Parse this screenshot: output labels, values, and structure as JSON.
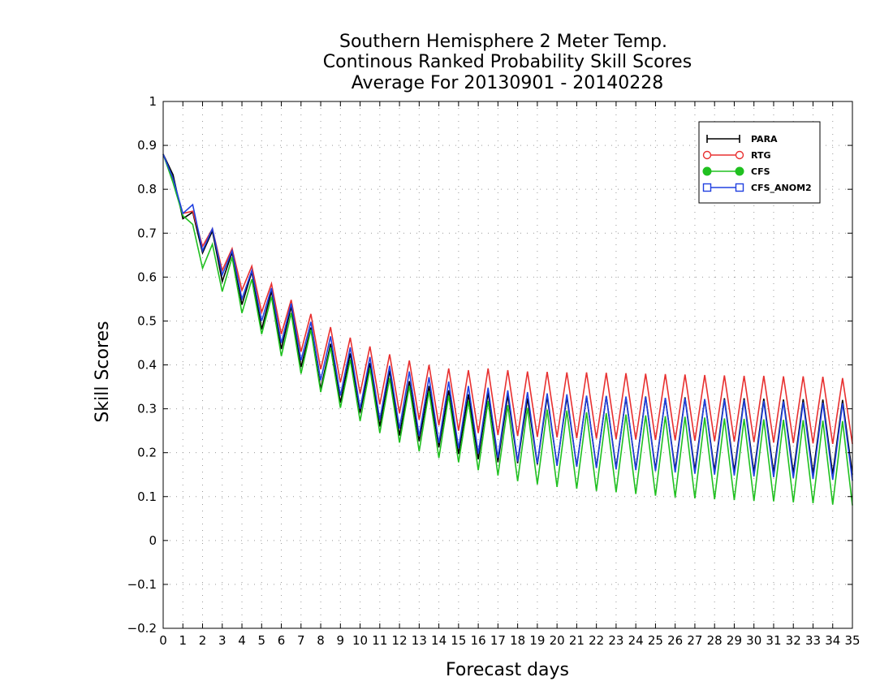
{
  "chart_data": {
    "type": "line",
    "title": [
      "Southern Hemisphere 2 Meter Temp.",
      "Continous Ranked Probability Skill Scores",
      "Average For 20130901 - 20140228"
    ],
    "xlabel": "Forecast days",
    "ylabel": "Skill Scores",
    "xlim": [
      0,
      35
    ],
    "ylim": [
      -0.2,
      1
    ],
    "xticks": [
      0,
      1,
      2,
      3,
      4,
      5,
      6,
      7,
      8,
      9,
      10,
      11,
      12,
      13,
      14,
      15,
      16,
      17,
      18,
      19,
      20,
      21,
      22,
      23,
      24,
      25,
      26,
      27,
      28,
      29,
      30,
      31,
      32,
      33,
      34,
      35
    ],
    "yticks": [
      -0.2,
      -0.1,
      0,
      0.1,
      0.2,
      0.3,
      0.4,
      0.5,
      0.6,
      0.7,
      0.8,
      0.9,
      1
    ],
    "ytick_labels": [
      "−0.2",
      "−0.1",
      "0",
      "0.1",
      "0.2",
      "0.3",
      "0.4",
      "0.5",
      "0.6",
      "0.7",
      "0.8",
      "0.9",
      "1"
    ],
    "grid": true,
    "legend_position": "top-right",
    "x_step_days": 0.5,
    "series": [
      {
        "name": "PARA",
        "color": "#000000",
        "marker": "plus",
        "values": [
          0.88,
          0.833,
          0.733,
          0.748,
          0.655,
          0.705,
          0.59,
          0.656,
          0.537,
          0.612,
          0.481,
          0.568,
          0.436,
          0.533,
          0.395,
          0.485,
          0.345,
          0.448,
          0.314,
          0.426,
          0.291,
          0.404,
          0.26,
          0.387,
          0.239,
          0.363,
          0.226,
          0.352,
          0.212,
          0.342,
          0.197,
          0.333,
          0.185,
          0.337,
          0.178,
          0.331,
          0.176,
          0.324,
          0.173,
          0.328,
          0.172,
          0.327,
          0.169,
          0.328,
          0.167,
          0.329,
          0.166,
          0.325,
          0.163,
          0.328,
          0.162,
          0.324,
          0.161,
          0.326,
          0.16,
          0.322,
          0.158,
          0.324,
          0.157,
          0.324,
          0.155,
          0.323,
          0.154,
          0.321,
          0.153,
          0.322,
          0.152,
          0.321,
          0.151,
          0.32,
          0.15
        ]
      },
      {
        "name": "RTG",
        "color": "#e83030",
        "marker": "open-circle",
        "values": [
          0.88,
          0.82,
          0.745,
          0.75,
          0.67,
          0.71,
          0.615,
          0.665,
          0.57,
          0.625,
          0.52,
          0.585,
          0.47,
          0.548,
          0.43,
          0.516,
          0.39,
          0.486,
          0.36,
          0.462,
          0.335,
          0.442,
          0.31,
          0.424,
          0.29,
          0.41,
          0.275,
          0.4,
          0.262,
          0.392,
          0.25,
          0.388,
          0.245,
          0.392,
          0.24,
          0.388,
          0.238,
          0.385,
          0.236,
          0.384,
          0.235,
          0.383,
          0.233,
          0.383,
          0.232,
          0.382,
          0.231,
          0.381,
          0.23,
          0.38,
          0.229,
          0.379,
          0.228,
          0.378,
          0.227,
          0.377,
          0.226,
          0.376,
          0.225,
          0.375,
          0.224,
          0.375,
          0.223,
          0.374,
          0.222,
          0.374,
          0.221,
          0.373,
          0.22,
          0.37,
          0.22
        ]
      },
      {
        "name": "CFS",
        "color": "#20c020",
        "marker": "filled-circle",
        "values": [
          0.88,
          0.815,
          0.74,
          0.72,
          0.62,
          0.675,
          0.567,
          0.645,
          0.518,
          0.595,
          0.47,
          0.555,
          0.42,
          0.518,
          0.38,
          0.48,
          0.338,
          0.44,
          0.302,
          0.412,
          0.272,
          0.392,
          0.245,
          0.37,
          0.223,
          0.352,
          0.203,
          0.34,
          0.188,
          0.33,
          0.178,
          0.318,
          0.16,
          0.318,
          0.148,
          0.308,
          0.135,
          0.302,
          0.128,
          0.298,
          0.122,
          0.296,
          0.118,
          0.292,
          0.113,
          0.29,
          0.11,
          0.287,
          0.106,
          0.285,
          0.102,
          0.283,
          0.098,
          0.282,
          0.096,
          0.28,
          0.094,
          0.278,
          0.092,
          0.277,
          0.09,
          0.276,
          0.089,
          0.275,
          0.087,
          0.274,
          0.085,
          0.273,
          0.082,
          0.272,
          0.08
        ]
      },
      {
        "name": "CFS_ANOM2",
        "color": "#2040e0",
        "marker": "open-square",
        "values": [
          0.88,
          0.825,
          0.745,
          0.765,
          0.66,
          0.71,
          0.605,
          0.66,
          0.55,
          0.615,
          0.5,
          0.575,
          0.45,
          0.54,
          0.41,
          0.498,
          0.365,
          0.465,
          0.33,
          0.44,
          0.3,
          0.418,
          0.275,
          0.398,
          0.255,
          0.385,
          0.238,
          0.372,
          0.222,
          0.362,
          0.21,
          0.352,
          0.198,
          0.348,
          0.188,
          0.342,
          0.18,
          0.338,
          0.175,
          0.335,
          0.17,
          0.333,
          0.168,
          0.33,
          0.165,
          0.329,
          0.162,
          0.328,
          0.16,
          0.327,
          0.158,
          0.325,
          0.155,
          0.324,
          0.152,
          0.322,
          0.15,
          0.321,
          0.148,
          0.32,
          0.146,
          0.318,
          0.144,
          0.317,
          0.142,
          0.315,
          0.14,
          0.314,
          0.138,
          0.313,
          0.136
        ]
      }
    ]
  }
}
